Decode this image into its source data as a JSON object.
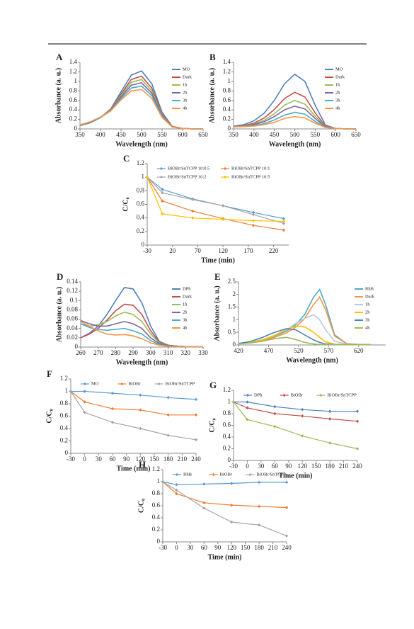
{
  "chart_data": [
    {
      "type": "line",
      "label": "A",
      "ylabel": "Absorbance (a. u.)",
      "xlabel": "Wavelength (nm)",
      "legend": "right",
      "markers": false,
      "x": [
        350,
        375,
        400,
        425,
        450,
        475,
        500,
        525,
        550,
        575,
        600,
        625,
        650
      ],
      "xlim": [
        350,
        650
      ],
      "xticks": [
        350,
        400,
        450,
        500,
        550,
        600,
        650
      ],
      "ylim": [
        0,
        1.4
      ],
      "yticks": [
        0,
        0.2,
        0.4,
        0.6,
        0.8,
        1,
        1.2,
        1.4
      ],
      "series": [
        {
          "name": "MO",
          "color": "#4f81bd",
          "values": [
            0.07,
            0.13,
            0.24,
            0.42,
            0.78,
            1.13,
            1.22,
            0.95,
            0.35,
            0.05,
            0.01,
            0,
            0
          ]
        },
        {
          "name": "Dark",
          "color": "#c0504d",
          "values": [
            0.07,
            0.13,
            0.24,
            0.41,
            0.73,
            1.04,
            1.11,
            0.86,
            0.32,
            0.05,
            0.01,
            0,
            0
          ]
        },
        {
          "name": "1h",
          "color": "#9bbb59",
          "values": [
            0.07,
            0.13,
            0.24,
            0.4,
            0.7,
            0.98,
            1.04,
            0.8,
            0.3,
            0.04,
            0.01,
            0,
            0
          ]
        },
        {
          "name": "2h",
          "color": "#8064a2",
          "values": [
            0.08,
            0.13,
            0.24,
            0.39,
            0.67,
            0.92,
            0.97,
            0.75,
            0.28,
            0.04,
            0.01,
            0,
            0
          ]
        },
        {
          "name": "3h",
          "color": "#4bacc6",
          "values": [
            0.08,
            0.14,
            0.24,
            0.38,
            0.64,
            0.86,
            0.9,
            0.7,
            0.26,
            0.04,
            0.01,
            0,
            0
          ]
        },
        {
          "name": "4h",
          "color": "#f79646",
          "values": [
            0.09,
            0.15,
            0.25,
            0.38,
            0.61,
            0.8,
            0.83,
            0.64,
            0.24,
            0.04,
            0.01,
            0,
            0
          ]
        }
      ]
    },
    {
      "type": "line",
      "label": "B",
      "ylabel": "Absorbance (a. u.)",
      "xlabel": "Wavelength (nm)",
      "legend": "right",
      "markers": false,
      "x": [
        350,
        375,
        400,
        425,
        450,
        475,
        500,
        525,
        550,
        575,
        600,
        625,
        650
      ],
      "xlim": [
        350,
        650
      ],
      "xticks": [
        350,
        400,
        450,
        500,
        550,
        600,
        650
      ],
      "ylim": [
        0,
        1.4
      ],
      "yticks": [
        0,
        0.2,
        0.4,
        0.6,
        0.8,
        1,
        1.2,
        1.4
      ],
      "series": [
        {
          "name": "MO",
          "color": "#4f81bd",
          "values": [
            0.06,
            0.09,
            0.17,
            0.33,
            0.6,
            0.95,
            1.15,
            1.0,
            0.5,
            0.08,
            0.01,
            0,
            0
          ]
        },
        {
          "name": "Dark",
          "color": "#c0504d",
          "values": [
            0.05,
            0.07,
            0.12,
            0.23,
            0.41,
            0.64,
            0.77,
            0.67,
            0.34,
            0.06,
            0.01,
            0,
            0
          ]
        },
        {
          "name": "1h",
          "color": "#9bbb59",
          "values": [
            0.05,
            0.06,
            0.1,
            0.18,
            0.32,
            0.5,
            0.6,
            0.52,
            0.27,
            0.05,
            0.01,
            0,
            0
          ]
        },
        {
          "name": "2h",
          "color": "#8064a2",
          "values": [
            0.05,
            0.06,
            0.09,
            0.15,
            0.26,
            0.4,
            0.48,
            0.42,
            0.22,
            0.04,
            0.01,
            0,
            0
          ]
        },
        {
          "name": "3h",
          "color": "#4bacc6",
          "values": [
            0.05,
            0.05,
            0.07,
            0.11,
            0.19,
            0.29,
            0.35,
            0.31,
            0.16,
            0.03,
            0.01,
            0,
            0
          ]
        },
        {
          "name": "4h",
          "color": "#f79646",
          "values": [
            0.04,
            0.05,
            0.06,
            0.09,
            0.14,
            0.22,
            0.26,
            0.23,
            0.12,
            0.03,
            0.01,
            0,
            0
          ]
        }
      ]
    },
    {
      "type": "line",
      "label": "C",
      "ylabel": "C/C₀",
      "xlabel": "Time (min)",
      "legend": "top",
      "markers": true,
      "x": [
        -30,
        0,
        60,
        120,
        180,
        240
      ],
      "xlim": [
        -30,
        250
      ],
      "xticks": [
        -30,
        20,
        70,
        120,
        170,
        220
      ],
      "ylim": [
        0,
        1.2
      ],
      "yticks": [
        0,
        0.2,
        0.4,
        0.6,
        0.8,
        1,
        1.2
      ],
      "series": [
        {
          "name": "BiOBr/SnTCPP 10:0.5",
          "color": "#5b9bd5",
          "values": [
            1,
            0.82,
            0.68,
            0.58,
            0.48,
            0.39
          ]
        },
        {
          "name": "BiOBr/SnTCPP 10:1",
          "color": "#ed7d31",
          "values": [
            1,
            0.65,
            0.5,
            0.39,
            0.29,
            0.22
          ]
        },
        {
          "name": "BiOBr/SnTCPP 10:2",
          "color": "#a5a5a5",
          "values": [
            1,
            0.77,
            0.67,
            0.58,
            0.45,
            0.32
          ]
        },
        {
          "name": "BiOBr/SnTCPP 10:5",
          "color": "#ffc000",
          "values": [
            1,
            0.46,
            0.4,
            0.38,
            0.36,
            0.35
          ]
        }
      ]
    },
    {
      "type": "line",
      "label": "D",
      "ylabel": "Absorbance (a. u.)",
      "xlabel": "Wavelength (nm)",
      "legend": "right",
      "markers": false,
      "x": [
        260,
        265,
        270,
        275,
        280,
        285,
        290,
        295,
        300,
        305,
        310,
        315,
        320,
        325,
        330
      ],
      "xlim": [
        260,
        330
      ],
      "xticks": [
        260,
        270,
        280,
        290,
        300,
        310,
        320,
        330
      ],
      "ylim": [
        0,
        0.14
      ],
      "yticks": [
        0,
        0.02,
        0.04,
        0.06,
        0.08,
        0.1,
        0.12,
        0.14
      ],
      "series": [
        {
          "name": "DPh",
          "color": "#4f81bd",
          "values": [
            0.02,
            0.03,
            0.045,
            0.07,
            0.1,
            0.128,
            0.125,
            0.095,
            0.045,
            0.012,
            0.004,
            0.002,
            0.001,
            0.001,
            0.001
          ]
        },
        {
          "name": "Dark",
          "color": "#c0504d",
          "values": [
            0.02,
            0.028,
            0.04,
            0.058,
            0.078,
            0.092,
            0.09,
            0.07,
            0.035,
            0.01,
            0.004,
            0.002,
            0.001,
            0.001,
            0.001
          ]
        },
        {
          "name": "1h",
          "color": "#9bbb59",
          "values": [
            0.05,
            0.045,
            0.048,
            0.055,
            0.067,
            0.075,
            0.07,
            0.055,
            0.028,
            0.009,
            0.003,
            0.002,
            0.001,
            0.001,
            0.001
          ]
        },
        {
          "name": "2h",
          "color": "#8064a2",
          "values": [
            0.057,
            0.05,
            0.045,
            0.045,
            0.05,
            0.055,
            0.05,
            0.04,
            0.02,
            0.007,
            0.003,
            0.002,
            0.001,
            0.001,
            0.001
          ]
        },
        {
          "name": "3h",
          "color": "#4bacc6",
          "values": [
            0.05,
            0.042,
            0.038,
            0.036,
            0.038,
            0.04,
            0.035,
            0.028,
            0.014,
            0.005,
            0.002,
            0.001,
            0.001,
            0.001,
            0.001
          ]
        },
        {
          "name": "4h",
          "color": "#f79646",
          "values": [
            0.055,
            0.045,
            0.035,
            0.028,
            0.026,
            0.027,
            0.024,
            0.018,
            0.009,
            0.004,
            0.002,
            0.001,
            0.001,
            0.001,
            0.001
          ]
        }
      ]
    },
    {
      "type": "line",
      "label": "E",
      "ylabel": "Absorbance (a. u.)",
      "xlabel": "Wavelength (nm)",
      "legend": "right",
      "markers": false,
      "x": [
        420,
        440,
        460,
        480,
        500,
        515,
        530,
        545,
        555,
        565,
        580,
        600,
        620,
        640
      ],
      "xlim": [
        420,
        665
      ],
      "xticks": [
        420,
        470,
        520,
        570,
        620
      ],
      "ylim": [
        0,
        2.5
      ],
      "yticks": [
        0,
        0.5,
        1,
        1.5,
        2,
        2.5
      ],
      "series": [
        {
          "name": "RhB",
          "color": "#4bacc6",
          "values": [
            0.05,
            0.1,
            0.2,
            0.35,
            0.55,
            0.8,
            1.2,
            1.9,
            2.2,
            1.6,
            0.4,
            0.05,
            0.02,
            0.01
          ]
        },
        {
          "name": "Dark",
          "color": "#f79646",
          "values": [
            0.05,
            0.1,
            0.18,
            0.3,
            0.48,
            0.7,
            1.05,
            1.6,
            1.9,
            1.4,
            0.35,
            0.05,
            0.02,
            0.01
          ]
        },
        {
          "name": "1h",
          "color": "#b7c8e0",
          "values": [
            0.06,
            0.12,
            0.22,
            0.38,
            0.6,
            0.85,
            1.05,
            1.2,
            1.0,
            0.6,
            0.15,
            0.03,
            0.01,
            0.01
          ]
        },
        {
          "name": "2h",
          "color": "#ffc000",
          "values": [
            0.05,
            0.1,
            0.2,
            0.38,
            0.62,
            0.74,
            0.72,
            0.5,
            0.3,
            0.12,
            0.03,
            0.01,
            0.01,
            0.01
          ]
        },
        {
          "name": "3h",
          "color": "#4f81bd",
          "values": [
            0.06,
            0.14,
            0.3,
            0.5,
            0.65,
            0.6,
            0.4,
            0.2,
            0.1,
            0.04,
            0.02,
            0.01,
            0.01,
            0.01
          ]
        },
        {
          "name": "4h",
          "color": "#9bbb59",
          "values": [
            0.04,
            0.08,
            0.15,
            0.25,
            0.3,
            0.22,
            0.1,
            0.04,
            0.02,
            0.01,
            0.01,
            0.01,
            0.01,
            0.01
          ]
        }
      ]
    },
    {
      "type": "line",
      "label": "F",
      "ylabel": "C/C₀",
      "xlabel": "Time (min)",
      "legend": "top",
      "markers": true,
      "x": [
        -30,
        0,
        60,
        120,
        180,
        240
      ],
      "xlim": [
        -30,
        240
      ],
      "xticks": [
        -30,
        0,
        30,
        60,
        90,
        120,
        150,
        180,
        210,
        240
      ],
      "ylim": [
        0,
        1.2
      ],
      "yticks": [
        0,
        0.2,
        0.4,
        0.6,
        0.8,
        1,
        1.2
      ],
      "series": [
        {
          "name": "MO",
          "color": "#5b9bd5",
          "values": [
            1,
            1,
            0.97,
            0.94,
            0.9,
            0.87
          ]
        },
        {
          "name": "BiOBr",
          "color": "#ed7d31",
          "values": [
            1,
            0.83,
            0.72,
            0.7,
            0.62,
            0.62
          ]
        },
        {
          "name": "BiOBr/SnTCPP",
          "color": "#a5a5a5",
          "values": [
            1,
            0.66,
            0.5,
            0.4,
            0.29,
            0.22
          ]
        }
      ]
    },
    {
      "type": "line",
      "label": "G",
      "ylabel": "C/C₀",
      "xlabel": "Time (min)",
      "legend": "top",
      "markers": true,
      "x": [
        -30,
        0,
        60,
        120,
        180,
        240
      ],
      "xlim": [
        -30,
        240
      ],
      "xticks": [
        -30,
        0,
        30,
        60,
        90,
        120,
        150,
        180,
        210,
        240
      ],
      "ylim": [
        0,
        1.2
      ],
      "yticks": [
        0,
        0.2,
        0.4,
        0.6,
        0.8,
        1,
        1.2
      ],
      "series": [
        {
          "name": "DPh",
          "color": "#4f81bd",
          "values": [
            1,
            1,
            0.92,
            0.87,
            0.84,
            0.84
          ]
        },
        {
          "name": "BiOBr",
          "color": "#c0504d",
          "values": [
            1,
            0.9,
            0.8,
            0.76,
            0.71,
            0.67
          ]
        },
        {
          "name": "BiOBr/SnTCPP",
          "color": "#9bbb59",
          "values": [
            1,
            0.7,
            0.58,
            0.42,
            0.3,
            0.2
          ]
        }
      ]
    },
    {
      "type": "line",
      "label": "H",
      "ylabel": "C/C₀",
      "xlabel": "Time (min)",
      "legend": "top",
      "markers": true,
      "x": [
        -30,
        0,
        60,
        120,
        180,
        240
      ],
      "xlim": [
        -30,
        240
      ],
      "xticks": [
        -30,
        0,
        30,
        60,
        90,
        120,
        150,
        180,
        210,
        240
      ],
      "ylim": [
        0,
        1.2
      ],
      "yticks": [
        0,
        0.2,
        0.4,
        0.6,
        0.8,
        1,
        1.2
      ],
      "series": [
        {
          "name": "RhB",
          "color": "#5b9bd5",
          "values": [
            1,
            0.95,
            0.96,
            0.97,
            0.99,
            0.99
          ]
        },
        {
          "name": "BiOBr",
          "color": "#ed7d31",
          "values": [
            1,
            0.8,
            0.65,
            0.61,
            0.59,
            0.57
          ]
        },
        {
          "name": "BiOBr/SnTCPP",
          "color": "#a5a5a5",
          "values": [
            1,
            0.86,
            0.56,
            0.33,
            0.28,
            0.1
          ]
        }
      ]
    }
  ]
}
